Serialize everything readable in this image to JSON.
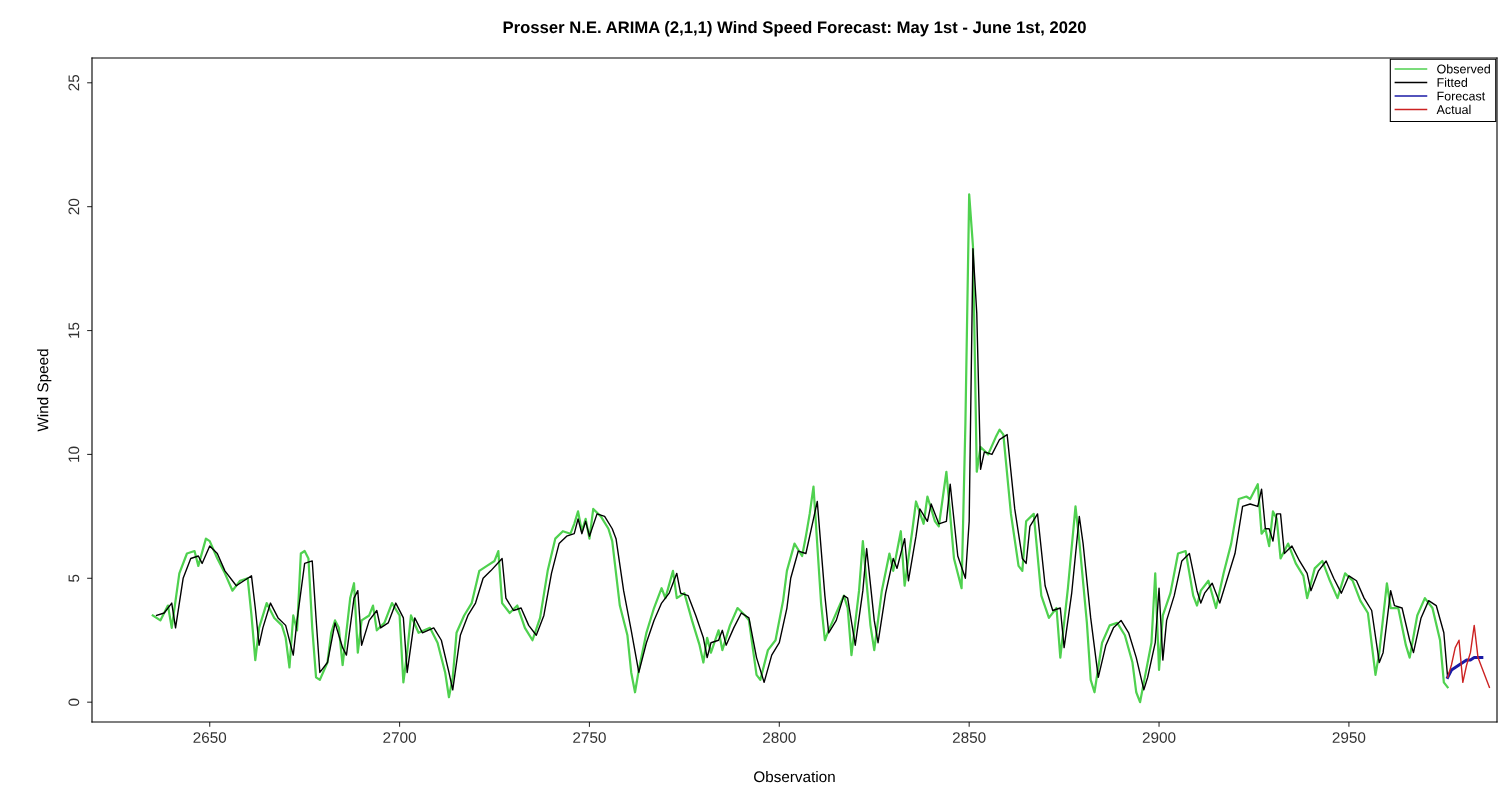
{
  "chart_data": {
    "type": "line",
    "title": "Prosser N.E. ARIMA (2,1,1) Wind Speed Forecast: May 1st - June 1st, 2020",
    "xlabel": "Observation",
    "ylabel": "Wind Speed",
    "xlim": [
      2619,
      2989
    ],
    "ylim": [
      -0.8,
      26
    ],
    "xticks": [
      2650,
      2700,
      2750,
      2800,
      2850,
      2900,
      2950
    ],
    "yticks": [
      0,
      5,
      10,
      15,
      20,
      25
    ],
    "grid": false,
    "legend": "top right",
    "marker": "none",
    "line_style": "solid",
    "series": [
      {
        "name": "Observed",
        "color": "#4fd14f",
        "x": [
          2635,
          2637,
          2639,
          2640,
          2642,
          2644,
          2646,
          2647,
          2649,
          2650,
          2652,
          2654,
          2656,
          2658,
          2660,
          2661,
          2662,
          2663,
          2665,
          2667,
          2669,
          2670,
          2671,
          2672,
          2673,
          2674,
          2675,
          2676,
          2677,
          2678,
          2679,
          2681,
          2682,
          2683,
          2684,
          2685,
          2687,
          2688,
          2689,
          2690,
          2692,
          2693,
          2694,
          2696,
          2698,
          2700,
          2701,
          2702,
          2703,
          2705,
          2708,
          2710,
          2712,
          2713,
          2714,
          2715,
          2717,
          2719,
          2721,
          2723,
          2725,
          2726,
          2727,
          2729,
          2731,
          2733,
          2735,
          2737,
          2739,
          2741,
          2743,
          2745,
          2746,
          2747,
          2748,
          2749,
          2750,
          2751,
          2753,
          2755,
          2756,
          2758,
          2760,
          2761,
          2762,
          2763,
          2765,
          2767,
          2769,
          2770,
          2772,
          2773,
          2775,
          2777,
          2779,
          2780,
          2781,
          2782,
          2784,
          2785,
          2787,
          2789,
          2791,
          2792,
          2794,
          2795,
          2797,
          2799,
          2801,
          2802,
          2804,
          2806,
          2807,
          2808,
          2809,
          2811,
          2812,
          2813,
          2815,
          2817,
          2818,
          2819,
          2821,
          2822,
          2824,
          2825,
          2827,
          2829,
          2830,
          2832,
          2833,
          2835,
          2836,
          2838,
          2839,
          2841,
          2842,
          2844,
          2846,
          2848,
          2849,
          2850,
          2851,
          2852,
          2853,
          2855,
          2857,
          2858,
          2859,
          2861,
          2863,
          2864,
          2865,
          2867,
          2869,
          2871,
          2873,
          2874,
          2876,
          2878,
          2879,
          2881,
          2882,
          2883,
          2885,
          2887,
          2889,
          2891,
          2893,
          2894,
          2895,
          2896,
          2898,
          2899,
          2900,
          2901,
          2903,
          2905,
          2907,
          2909,
          2910,
          2911,
          2913,
          2915,
          2917,
          2919,
          2921,
          2923,
          2924,
          2926,
          2927,
          2928,
          2929,
          2930,
          2931,
          2932,
          2934,
          2936,
          2938,
          2939,
          2941,
          2943,
          2945,
          2947,
          2949,
          2951,
          2953,
          2955,
          2957,
          2958,
          2960,
          2961,
          2963,
          2965,
          2966,
          2968,
          2970,
          2972,
          2974,
          2975,
          2976
        ],
        "values": [
          3.5,
          3.3,
          3.9,
          3.0,
          5.2,
          6.0,
          6.1,
          5.5,
          6.6,
          6.5,
          5.8,
          5.2,
          4.5,
          4.9,
          5.0,
          3.5,
          1.7,
          3.0,
          4.0,
          3.4,
          3.1,
          2.6,
          1.4,
          3.5,
          2.9,
          6.0,
          6.1,
          5.8,
          3.0,
          1.0,
          0.9,
          1.6,
          2.8,
          3.3,
          3.0,
          1.5,
          4.2,
          4.8,
          2.0,
          3.3,
          3.5,
          3.9,
          2.9,
          3.2,
          4.0,
          3.5,
          0.8,
          2.0,
          3.5,
          2.8,
          3.0,
          2.4,
          1.2,
          0.2,
          1.0,
          2.8,
          3.5,
          4.0,
          5.3,
          5.5,
          5.7,
          6.1,
          4.0,
          3.6,
          3.9,
          3.0,
          2.5,
          3.4,
          5.3,
          6.6,
          6.9,
          6.8,
          7.2,
          7.7,
          6.9,
          7.4,
          6.6,
          7.8,
          7.5,
          7.0,
          6.5,
          3.9,
          2.7,
          1.2,
          0.4,
          1.3,
          2.8,
          3.8,
          4.6,
          4.2,
          5.3,
          4.2,
          4.4,
          3.3,
          2.3,
          1.6,
          2.6,
          2.0,
          2.9,
          2.1,
          3.1,
          3.8,
          3.5,
          3.3,
          1.1,
          0.9,
          2.1,
          2.5,
          4.1,
          5.3,
          6.4,
          5.9,
          6.7,
          7.6,
          8.7,
          4.0,
          2.5,
          2.9,
          3.6,
          4.3,
          3.8,
          1.9,
          4.5,
          6.5,
          3.1,
          2.1,
          4.5,
          6.0,
          5.3,
          6.9,
          4.7,
          6.9,
          8.1,
          7.2,
          8.3,
          7.3,
          7.1,
          9.3,
          5.8,
          4.6,
          11.2,
          20.5,
          18.4,
          9.3,
          10.3,
          10.0,
          10.7,
          11.0,
          10.8,
          7.6,
          5.5,
          5.3,
          7.3,
          7.6,
          4.3,
          3.4,
          3.8,
          1.8,
          4.6,
          7.9,
          6.5,
          3.2,
          0.9,
          0.4,
          2.4,
          3.1,
          3.2,
          2.7,
          1.6,
          0.4,
          0.0,
          0.8,
          2.4,
          5.2,
          1.3,
          3.5,
          4.4,
          6.0,
          6.1,
          4.3,
          3.9,
          4.5,
          4.9,
          3.8,
          5.2,
          6.4,
          8.2,
          8.3,
          8.2,
          8.8,
          6.8,
          7.0,
          6.3,
          7.7,
          7.4,
          5.8,
          6.4,
          5.6,
          5.1,
          4.2,
          5.4,
          5.7,
          4.9,
          4.2,
          5.2,
          4.9,
          4.1,
          3.6,
          1.1,
          2.0,
          4.8,
          3.8,
          3.8,
          2.3,
          1.8,
          3.5,
          4.2,
          3.8,
          2.5,
          0.8,
          0.6
        ]
      },
      {
        "name": "Fitted",
        "color": "#000000",
        "x": [
          2636,
          2638,
          2640,
          2641,
          2643,
          2645,
          2647,
          2648,
          2650,
          2652,
          2654,
          2657,
          2659,
          2661,
          2662,
          2663,
          2664,
          2666,
          2668,
          2670,
          2672,
          2673,
          2675,
          2677,
          2678,
          2679,
          2681,
          2683,
          2685,
          2686,
          2688,
          2689,
          2690,
          2692,
          2694,
          2695,
          2697,
          2699,
          2701,
          2702,
          2704,
          2706,
          2709,
          2711,
          2713,
          2714,
          2716,
          2718,
          2720,
          2722,
          2724,
          2727,
          2728,
          2730,
          2732,
          2734,
          2736,
          2738,
          2740,
          2742,
          2744,
          2746,
          2747,
          2748,
          2749,
          2750,
          2752,
          2754,
          2756,
          2757,
          2759,
          2761,
          2763,
          2765,
          2767,
          2769,
          2771,
          2773,
          2774,
          2776,
          2778,
          2780,
          2781,
          2782,
          2784,
          2785,
          2786,
          2788,
          2790,
          2792,
          2794,
          2796,
          2798,
          2800,
          2802,
          2803,
          2805,
          2807,
          2809,
          2810,
          2812,
          2813,
          2815,
          2817,
          2818,
          2820,
          2822,
          2823,
          2825,
          2826,
          2828,
          2830,
          2831,
          2833,
          2834,
          2836,
          2837,
          2839,
          2840,
          2842,
          2844,
          2845,
          2847,
          2849,
          2850,
          2851,
          2852,
          2853,
          2854,
          2856,
          2858,
          2860,
          2862,
          2864,
          2865,
          2866,
          2868,
          2870,
          2872,
          2874,
          2875,
          2877,
          2879,
          2880,
          2882,
          2884,
          2886,
          2888,
          2890,
          2892,
          2894,
          2896,
          2897,
          2899,
          2900,
          2901,
          2902,
          2904,
          2906,
          2908,
          2910,
          2911,
          2912,
          2914,
          2916,
          2918,
          2920,
          2922,
          2924,
          2926,
          2927,
          2928,
          2929,
          2930,
          2931,
          2932,
          2933,
          2935,
          2937,
          2939,
          2940,
          2942,
          2944,
          2946,
          2948,
          2950,
          2952,
          2954,
          2956,
          2958,
          2959,
          2961,
          2962,
          2964,
          2966,
          2967,
          2969,
          2971,
          2973,
          2975,
          2976
        ],
        "values": [
          3.5,
          3.6,
          4.0,
          3.0,
          5.0,
          5.8,
          5.9,
          5.6,
          6.3,
          6.0,
          5.3,
          4.7,
          4.9,
          5.1,
          3.8,
          2.3,
          3.0,
          4.0,
          3.4,
          3.1,
          1.9,
          3.3,
          5.6,
          5.7,
          3.4,
          1.2,
          1.6,
          3.2,
          2.2,
          1.9,
          4.2,
          4.5,
          2.3,
          3.3,
          3.7,
          3.0,
          3.2,
          4.0,
          3.4,
          1.2,
          3.4,
          2.8,
          3.0,
          2.5,
          1.2,
          0.5,
          2.7,
          3.5,
          4.0,
          5.0,
          5.3,
          5.8,
          4.2,
          3.7,
          3.8,
          3.1,
          2.7,
          3.5,
          5.2,
          6.4,
          6.7,
          6.8,
          7.4,
          6.8,
          7.3,
          6.7,
          7.6,
          7.5,
          7.0,
          6.6,
          4.5,
          2.9,
          1.2,
          2.4,
          3.3,
          4.0,
          4.4,
          5.2,
          4.4,
          4.3,
          3.5,
          2.6,
          1.8,
          2.4,
          2.5,
          2.9,
          2.3,
          3.0,
          3.6,
          3.4,
          1.8,
          0.8,
          1.9,
          2.4,
          3.8,
          5.0,
          6.1,
          6.0,
          7.4,
          8.1,
          4.3,
          2.8,
          3.3,
          4.3,
          4.2,
          2.3,
          4.5,
          6.2,
          3.3,
          2.4,
          4.4,
          5.8,
          5.4,
          6.6,
          4.9,
          6.7,
          7.8,
          7.3,
          8.0,
          7.2,
          7.3,
          8.8,
          5.9,
          5.0,
          7.3,
          18.3,
          15.7,
          9.4,
          10.1,
          10.0,
          10.6,
          10.8,
          7.8,
          5.8,
          5.6,
          7.1,
          7.6,
          4.7,
          3.7,
          3.8,
          2.2,
          4.4,
          7.5,
          6.4,
          3.4,
          1.0,
          2.3,
          3.0,
          3.3,
          2.8,
          1.8,
          0.5,
          1.0,
          2.4,
          4.6,
          1.7,
          3.3,
          4.3,
          5.7,
          6.0,
          4.5,
          4.0,
          4.4,
          4.8,
          4.0,
          5.0,
          6.0,
          7.9,
          8.0,
          7.9,
          8.6,
          7.0,
          7.0,
          6.5,
          7.6,
          7.6,
          6.0,
          6.3,
          5.7,
          5.2,
          4.5,
          5.3,
          5.7,
          5.0,
          4.4,
          5.1,
          4.9,
          4.2,
          3.7,
          1.6,
          2.0,
          4.5,
          3.9,
          3.8,
          2.5,
          2.0,
          3.4,
          4.1,
          3.9,
          2.8,
          1.0
        ]
      },
      {
        "name": "Forecast",
        "color": "#1a1aa6",
        "x": [
          2976,
          2977,
          2978,
          2979,
          2980,
          2981,
          2982,
          2983,
          2984,
          2985
        ],
        "values": [
          1.0,
          1.3,
          1.4,
          1.5,
          1.6,
          1.7,
          1.7,
          1.8,
          1.8,
          1.8
        ]
      },
      {
        "name": "Actual",
        "color": "#cc2222",
        "x": [
          2976,
          2977,
          2978,
          2979,
          2980,
          2981,
          2982,
          2983,
          2984,
          2985,
          2987
        ],
        "values": [
          1.0,
          1.5,
          2.2,
          2.5,
          0.8,
          1.5,
          2.0,
          3.1,
          1.8,
          1.4,
          0.6
        ]
      }
    ]
  }
}
